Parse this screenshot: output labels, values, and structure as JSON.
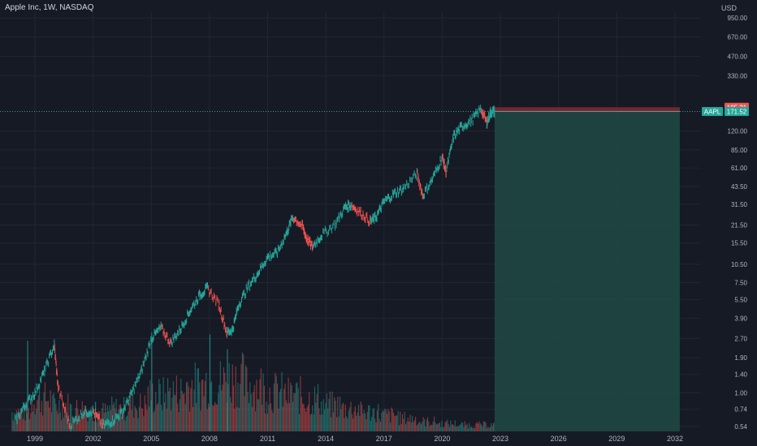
{
  "header": {
    "title": "Apple Inc, 1W, NASDAQ",
    "currency": "USD"
  },
  "colors": {
    "background": "#161a25",
    "up": "#26a69a",
    "down": "#ef5350",
    "profit_zone": "#1e4a45",
    "stop_zone": "#7a2a31",
    "last_price": "#26a69a",
    "grid": "#222633"
  },
  "chart_data": {
    "type": "line",
    "title": "Apple Inc, 1W, NASDAQ",
    "y_scale": "log",
    "y_ticks": [
      "0.54",
      "0.74",
      "1.00",
      "1.40",
      "1.90",
      "2.70",
      "3.90",
      "5.50",
      "7.50",
      "10.50",
      "15.50",
      "21.50",
      "31.50",
      "43.50",
      "61.00",
      "85.00",
      "120.00",
      "330.00",
      "470.00",
      "670.00",
      "950.00"
    ],
    "x_ticks": [
      "1999",
      "2002",
      "2005",
      "2008",
      "2011",
      "2014",
      "2017",
      "2020",
      "2023",
      "2026",
      "2029",
      "2032"
    ],
    "series": [
      {
        "x": [
          1998.0,
          1998.5,
          1999.0,
          1999.5,
          2000.0,
          2000.2,
          2000.8,
          2001.5,
          2002.0,
          2002.5,
          2003.0,
          2003.5,
          2004.0,
          2004.5,
          2005.0,
          2005.5,
          2006.0,
          2006.5,
          2007.0,
          2007.5,
          2007.9,
          2008.5,
          2008.9,
          2009.2,
          2009.5,
          2010.0,
          2010.5,
          2011.0,
          2011.5,
          2012.0,
          2012.3,
          2012.8,
          2013.0,
          2013.3,
          2013.8,
          2014.5,
          2015.0,
          2015.3,
          2015.8,
          2016.3,
          2016.6,
          2017.0,
          2017.5,
          2018.0,
          2018.7,
          2019.0,
          2019.5,
          2020.0,
          2020.2,
          2020.6,
          2021.0,
          2021.5,
          2022.0,
          2022.3,
          2022.5,
          2022.7
        ],
        "y": [
          0.6,
          0.8,
          1.0,
          1.5,
          2.4,
          1.1,
          0.55,
          0.7,
          0.72,
          0.55,
          0.6,
          0.7,
          1.0,
          1.5,
          2.7,
          3.3,
          2.5,
          3.2,
          4.5,
          6.0,
          6.8,
          5.0,
          3.0,
          3.2,
          5.0,
          7.0,
          9.0,
          12.0,
          13.0,
          19.0,
          25.0,
          21.0,
          17.0,
          14.5,
          18.0,
          22.0,
          30.0,
          31.0,
          27.0,
          23.0,
          25.0,
          33.0,
          38.0,
          42.0,
          55.0,
          37.0,
          50.0,
          75.0,
          57.0,
          110.0,
          130.0,
          145.0,
          180.0,
          140.0,
          170.0,
          171.52
        ]
      }
    ],
    "volume_profile": [
      0.3,
      0.5,
      0.4,
      0.35,
      0.3,
      0.35,
      0.4,
      0.55,
      0.6,
      0.7,
      0.75,
      0.8,
      0.7,
      0.6,
      0.55,
      0.5,
      0.4,
      0.35,
      0.3,
      0.25,
      0.2,
      0.15,
      0.12,
      0.1,
      0.1
    ],
    "volume_spikes": [
      [
        1998.6,
        0.86
      ],
      [
        2002.1,
        0.28
      ],
      [
        2005.0,
        0.94
      ],
      [
        2008.0,
        0.92
      ],
      [
        2008.9,
        0.78
      ]
    ],
    "position": {
      "entry": 171.71,
      "target": 171.52,
      "stop": 185.21,
      "start_year": 2022.7,
      "end_year": 2032.25
    },
    "price_tags": [
      {
        "label": "",
        "value": "185.21",
        "color": "#ef5350"
      },
      {
        "label": "",
        "value": "171.71",
        "color": "#7a7e89"
      },
      {
        "label": "AAPL",
        "value": "171.52",
        "color": "#26a69a"
      }
    ]
  }
}
